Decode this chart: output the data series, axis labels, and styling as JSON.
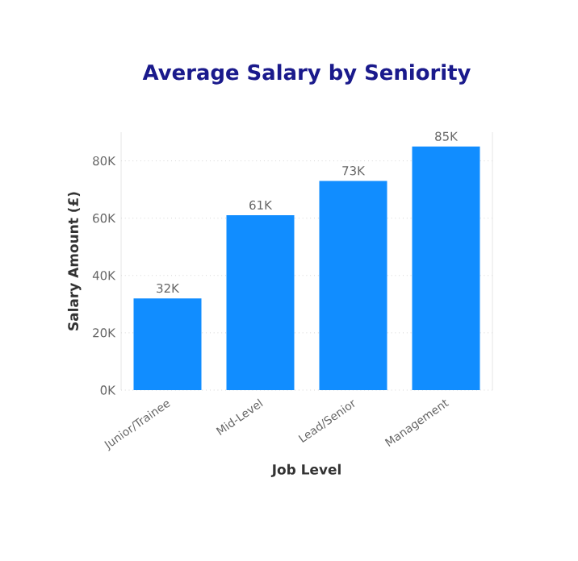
{
  "chart_data": {
    "type": "bar",
    "title": "Average Salary by Seniority",
    "xlabel": "Job Level",
    "ylabel": "Salary Amount (£)",
    "categories": [
      "Junior/Trainee",
      "Mid-Level",
      "Lead/Senior",
      "Management"
    ],
    "values": [
      32000,
      61000,
      73000,
      85000
    ],
    "value_labels": [
      "32K",
      "61K",
      "73K",
      "85K"
    ],
    "color": "#118dff",
    "ylim": [
      0,
      90000
    ],
    "yticks": [
      {
        "value": 0,
        "label": "0K"
      },
      {
        "value": 20000,
        "label": "20K"
      },
      {
        "value": 40000,
        "label": "40K"
      },
      {
        "value": 60000,
        "label": "60K"
      },
      {
        "value": 80000,
        "label": "80K"
      }
    ],
    "grid": "y"
  }
}
